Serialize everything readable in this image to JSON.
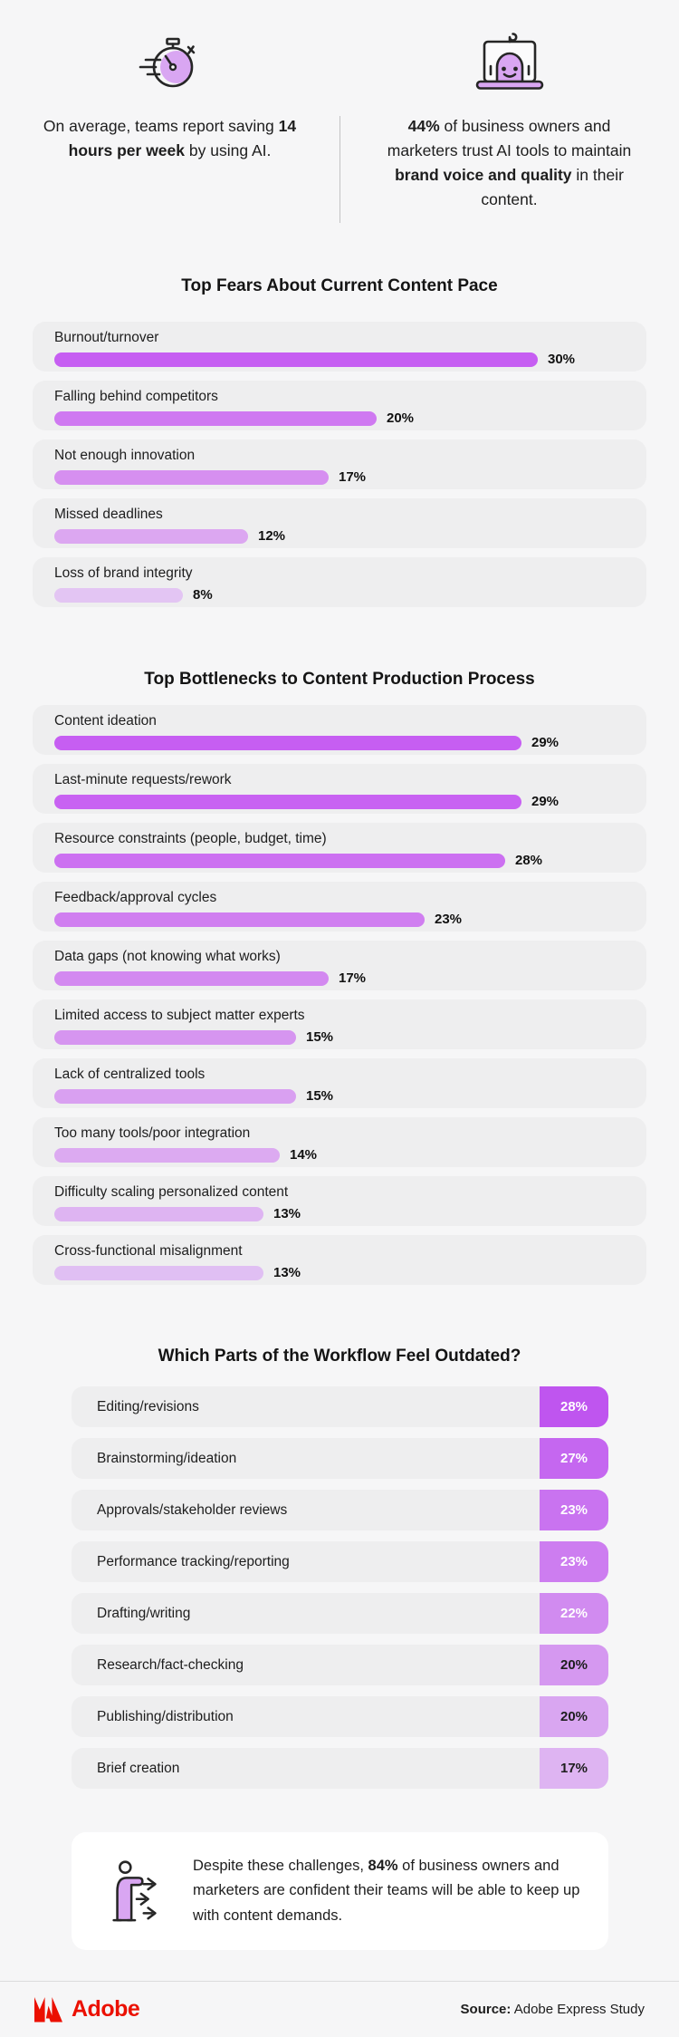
{
  "colors": {
    "page_bg": "#f6f6f7",
    "card_bg": "#eeeeef",
    "accent_purple": "#c65ef2",
    "icon_purple": "#d9a6f2",
    "adobe_red": "#eb1000",
    "text_dark": "#1d1d1d"
  },
  "icons": [
    "stopwatch-icon",
    "ai-laptop-robot-icon",
    "person-arrows-icon",
    "adobe-logo-icon"
  ],
  "header": {
    "stats": [
      {
        "icon": "stopwatch-icon",
        "segments": [
          {
            "t": "On average, teams report saving "
          },
          {
            "t": "14 hours per week",
            "b": true
          },
          {
            "t": " by using AI."
          }
        ]
      },
      {
        "icon": "ai-laptop-robot-icon",
        "segments": [
          {
            "t": "44%",
            "b": true
          },
          {
            "t": " of business owners and marketers trust AI tools to maintain "
          },
          {
            "t": "brand voice and quality",
            "b": true
          },
          {
            "t": " in their content."
          }
        ]
      }
    ]
  },
  "chart_data": [
    {
      "type": "bar",
      "orientation": "horizontal",
      "title": "Top Fears About Current Content Pace",
      "categories": [
        "Burnout/turnover",
        "Falling behind competitors",
        "Not enough innovation",
        "Missed deadlines",
        "Loss of brand integrity"
      ],
      "values": [
        30,
        20,
        17,
        12,
        8
      ],
      "unit": "%",
      "xlim": [
        0,
        30
      ],
      "grid": false,
      "legend": false,
      "bar_colors": [
        "#c65ef2",
        "#cf79f1",
        "#d68ff0",
        "#dca7f1",
        "#e3c5f3"
      ]
    },
    {
      "type": "bar",
      "orientation": "horizontal",
      "title": "Top Bottlenecks to Content Production Process",
      "categories": [
        "Content ideation",
        "Last-minute requests/rework",
        "Resource constraints (people, budget, time)",
        "Feedback/approval cycles",
        "Data gaps (not knowing what works)",
        "Limited access to subject matter experts",
        "Lack of centralized tools",
        "Too many tools/poor integration",
        "Difficulty scaling personalized content",
        "Cross-functional misalignment"
      ],
      "values": [
        29,
        29,
        28,
        23,
        17,
        15,
        15,
        14,
        13,
        13
      ],
      "unit": "%",
      "xlim": [
        0,
        30
      ],
      "grid": false,
      "legend": false,
      "bar_colors": [
        "#c65ef2",
        "#c862f2",
        "#cc70f1",
        "#d07ef0",
        "#d389f0",
        "#d695f0",
        "#d9a0f1",
        "#dcaaf1",
        "#deb4f2",
        "#e0bff3"
      ]
    },
    {
      "type": "table",
      "title": "Which Parts of the Workflow Feel Outdated?",
      "categories": [
        "Editing/revisions",
        "Brainstorming/ideation",
        "Approvals/stakeholder reviews",
        "Performance tracking/reporting",
        "Drafting/writing",
        "Research/fact-checking",
        "Publishing/distribution",
        "Brief creation"
      ],
      "values": [
        28,
        27,
        23,
        23,
        22,
        20,
        20,
        17
      ],
      "unit": "%",
      "badge_colors": [
        "#bf55ef",
        "#c567f0",
        "#c973f0",
        "#cd7df0",
        "#d18bf0",
        "#d598f0",
        "#d9a6f1",
        "#deb4f2"
      ],
      "badge_text_colors": [
        "#ffffff",
        "#ffffff",
        "#ffffff",
        "#ffffff",
        "#ffffff",
        "#1e1e1e",
        "#1e1e1e",
        "#1e1e1e"
      ]
    }
  ],
  "callout": {
    "icon": "person-arrows-icon",
    "segments": [
      {
        "t": "Despite these challenges, "
      },
      {
        "t": "84%",
        "b": true
      },
      {
        "t": " of business owners and marketers are confident their teams will be able to keep up with content demands."
      }
    ]
  },
  "footer": {
    "brand": "Adobe",
    "source_label": "Source:",
    "source_text": " Adobe Express Study"
  }
}
